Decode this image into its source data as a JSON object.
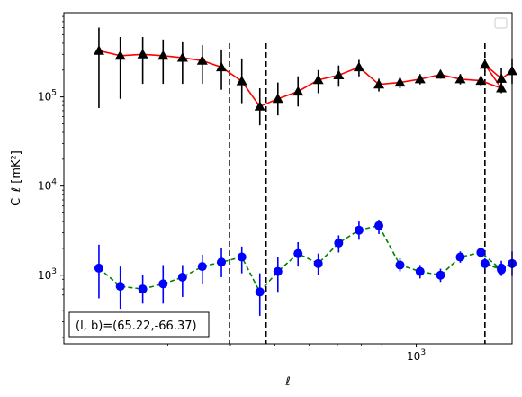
{
  "chart_data": {
    "type": "scatter",
    "title": "",
    "xscale": "log",
    "yscale": "log",
    "xlim": [
      102,
      1860
    ],
    "ylim": [
      170,
      880000
    ],
    "xlabel": "ℓ",
    "ylabel": "C_ℓ  [mK²]",
    "x_ticks": [
      {
        "value": 1000,
        "base": "10",
        "exp": "3"
      }
    ],
    "y_ticks": [
      {
        "value": 1000,
        "base": "10",
        "exp": "3"
      },
      {
        "value": 10000,
        "base": "10",
        "exp": "4"
      },
      {
        "value": 100000,
        "base": "10",
        "exp": "5"
      }
    ],
    "legend": {
      "position": "top-right",
      "entries": []
    },
    "annotation": {
      "text": "(l, b)=(65.22,-66.37)",
      "position": "bottom-left"
    },
    "vlines": [
      298,
      378,
      1560
    ],
    "series": [
      {
        "color": "#ff0000",
        "line": "solid",
        "marker": "triangle",
        "marker_color": "#000000",
        "errbar_color": "#000000",
        "x": [
          128,
          147,
          170,
          194,
          220,
          250,
          283,
          323,
          363,
          408,
          465,
          530,
          605,
          690,
          785,
          900,
          1025,
          1170,
          1330,
          1520,
          1735
        ],
        "y": [
          330000,
          290000,
          300000,
          290000,
          275000,
          255000,
          215000,
          150000,
          78000,
          95000,
          115000,
          155000,
          175000,
          215000,
          138000,
          145000,
          158000,
          178000,
          158000,
          152000,
          125000
        ],
        "err": [
          [
            75000,
            600000
          ],
          [
            95000,
            470000
          ],
          [
            140000,
            470000
          ],
          [
            140000,
            440000
          ],
          [
            140000,
            410000
          ],
          [
            140000,
            380000
          ],
          [
            120000,
            340000
          ],
          [
            85000,
            270000
          ],
          [
            48000,
            125000
          ],
          [
            62000,
            145000
          ],
          [
            78000,
            170000
          ],
          [
            110000,
            200000
          ],
          [
            130000,
            225000
          ],
          [
            170000,
            260000
          ],
          [
            115000,
            160000
          ],
          [
            125000,
            165000
          ],
          [
            138000,
            180000
          ],
          [
            160000,
            200000
          ],
          [
            138000,
            180000
          ],
          [
            132000,
            172000
          ],
          [
            110000,
            142000
          ]
        ]
      },
      {
        "color": "#008000",
        "line": "dashed",
        "marker": "circle",
        "marker_color": "#0000ff",
        "errbar_color": "#0000ff",
        "x": [
          128,
          147,
          170,
          194,
          220,
          250,
          283,
          323,
          363,
          408,
          465,
          530,
          605,
          690,
          785,
          900,
          1025,
          1170,
          1330,
          1520,
          1735
        ],
        "y": [
          1200,
          750,
          700,
          800,
          950,
          1250,
          1400,
          1600,
          650,
          1100,
          1750,
          1350,
          2300,
          3200,
          3600,
          1300,
          1100,
          1000,
          1600,
          1800,
          1150
        ],
        "err": [
          [
            550,
            2200
          ],
          [
            420,
            1250
          ],
          [
            480,
            1000
          ],
          [
            480,
            1300
          ],
          [
            570,
            1300
          ],
          [
            800,
            1700
          ],
          [
            950,
            2000
          ],
          [
            1050,
            2100
          ],
          [
            350,
            1050
          ],
          [
            650,
            1600
          ],
          [
            1250,
            2350
          ],
          [
            1000,
            1750
          ],
          [
            1800,
            2800
          ],
          [
            2500,
            4000
          ],
          [
            2900,
            4200
          ],
          [
            1100,
            1550
          ],
          [
            920,
            1300
          ],
          [
            840,
            1180
          ],
          [
            1380,
            1850
          ],
          [
            1580,
            2050
          ],
          [
            980,
            1350
          ]
        ]
      }
    ],
    "extra_points": {
      "series": [
        1,
        0
      ],
      "x": [
        1560,
        1735
      ],
      "note_index": 0
    },
    "tail_points": {
      "triangle": {
        "x": [
          1560,
          1735,
          1860
        ],
        "y": [
          230000,
          160000,
          195000
        ],
        "err": [
          [
            190000,
            270000
          ],
          [
            125000,
            210000
          ],
          [
            140000,
            270000
          ]
        ]
      },
      "circle": {
        "x": [
          1560,
          1735,
          1860
        ],
        "y": [
          1350,
          1200,
          1350
        ],
        "err": [
          [
            1180,
            1550
          ],
          [
            1000,
            1450
          ],
          [
            980,
            1850
          ]
        ]
      }
    }
  }
}
